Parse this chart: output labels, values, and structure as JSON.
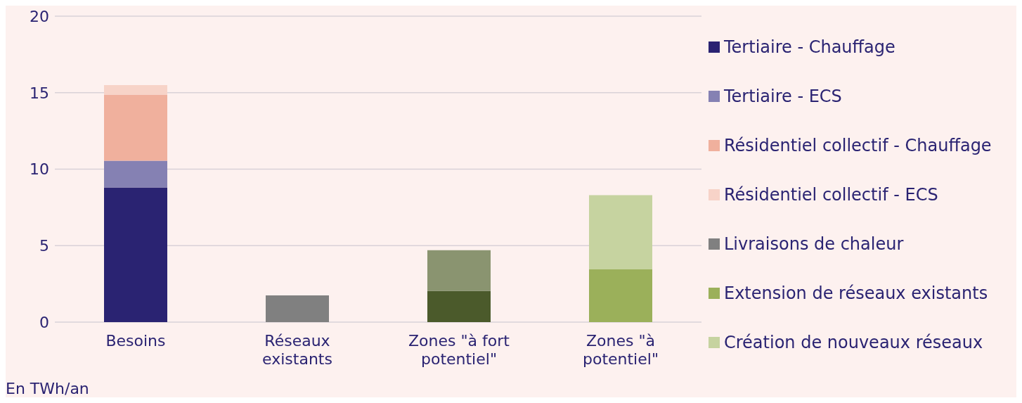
{
  "chart_data": {
    "type": "bar",
    "stacked": true,
    "categories": [
      "Besoins",
      "Réseaux existants",
      "Zones \"à fort potentiel\"",
      "Zones \"à potentiel\""
    ],
    "series": [
      {
        "name": "Tertiaire - Chauffage",
        "color": "#2a2372",
        "values": [
          8.8,
          null,
          null,
          null
        ]
      },
      {
        "name": "Tertiaire - ECS",
        "color": "#8581b3",
        "values": [
          1.75,
          null,
          null,
          null
        ]
      },
      {
        "name": "Résidentiel collectif - Chauffage",
        "color": "#f0b09d",
        "values": [
          4.3,
          null,
          null,
          null
        ]
      },
      {
        "name": "Résidentiel collectif - ECS",
        "color": "#f7d3c8",
        "values": [
          0.65,
          null,
          null,
          null
        ]
      },
      {
        "name": "Livraisons de chaleur",
        "color": "#808080",
        "values": [
          null,
          1.75,
          null,
          null
        ]
      },
      {
        "name": "Extension de réseaux existants",
        "color": "#9bb05a",
        "colors": [
          null,
          null,
          "#4b5a2b",
          "#9bb05a"
        ],
        "values": [
          null,
          null,
          2.05,
          3.45
        ]
      },
      {
        "name": "Création de nouveaux réseaux",
        "color": "#c6d3a0",
        "colors": [
          null,
          null,
          "#8a9470",
          "#c6d3a0"
        ],
        "values": [
          null,
          null,
          2.65,
          4.85
        ]
      }
    ],
    "ylim": [
      0,
      20
    ],
    "yticks": [
      0,
      5,
      10,
      15,
      20
    ],
    "grid": "y",
    "legend": "right",
    "annotations": [
      "En TWh/an"
    ]
  }
}
